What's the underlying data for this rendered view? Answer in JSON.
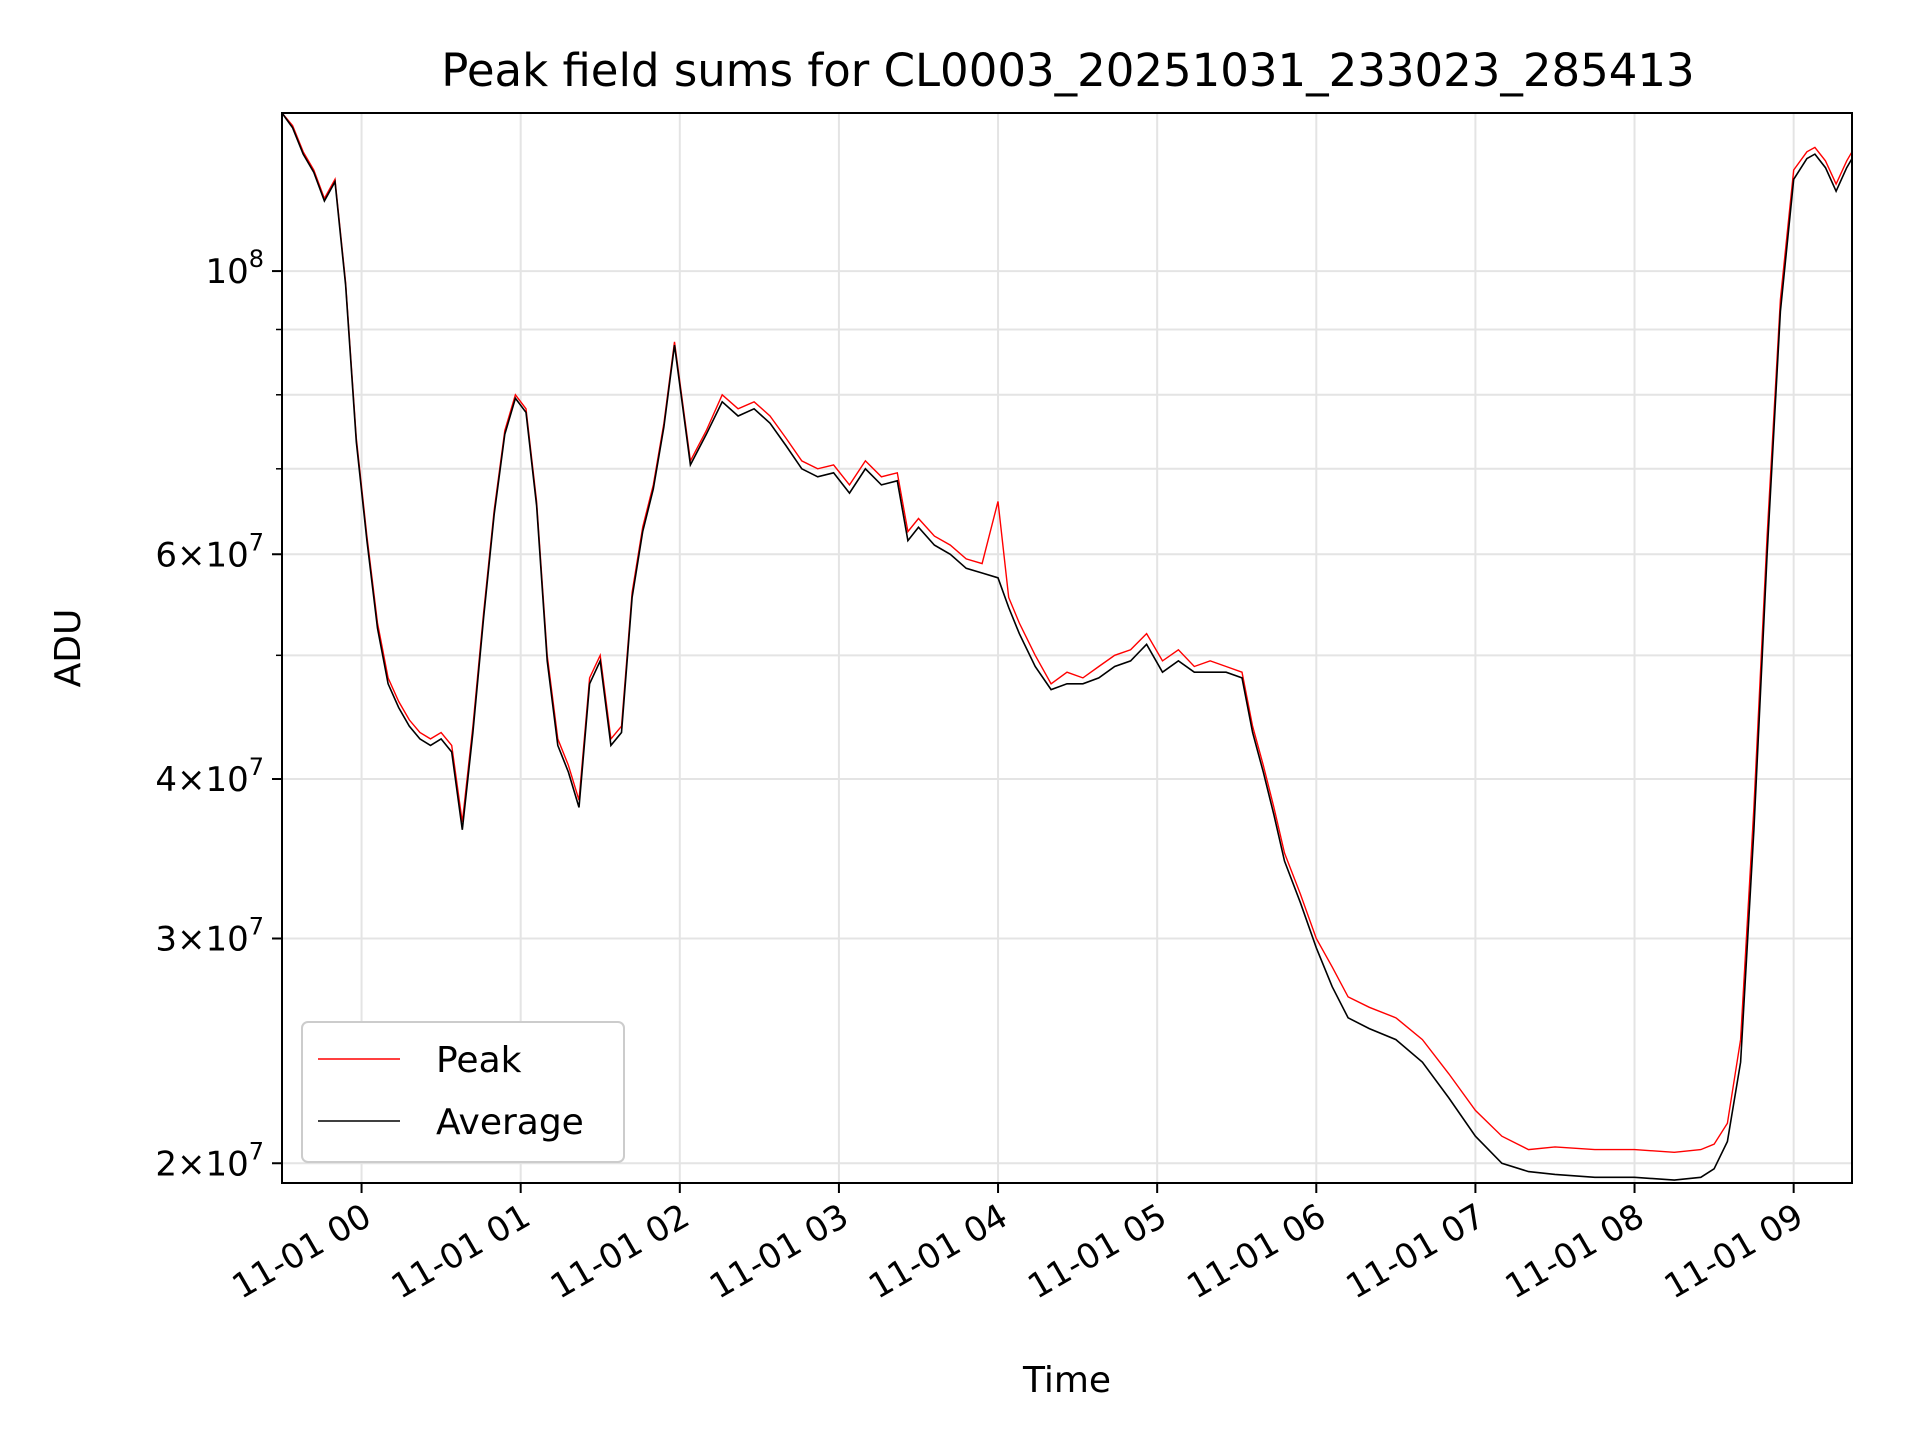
{
  "chart_data": {
    "type": "line",
    "title": "Peak field sums for CL0003_20251031_233023_285413",
    "xlabel": "Time",
    "ylabel": "ADU",
    "x_axis": {
      "kind": "time",
      "range": [
        "10-31 23:30",
        "11-01 09:22"
      ]
    },
    "y_axis": {
      "scale": "log",
      "range": [
        19300000,
        133000000
      ]
    },
    "grid": true,
    "legend_position": "lower-left",
    "x_ticks": [
      {
        "label": "11-01 00",
        "time": "11-01 00:00"
      },
      {
        "label": "11-01 01",
        "time": "11-01 01:00"
      },
      {
        "label": "11-01 02",
        "time": "11-01 02:00"
      },
      {
        "label": "11-01 03",
        "time": "11-01 03:00"
      },
      {
        "label": "11-01 04",
        "time": "11-01 04:00"
      },
      {
        "label": "11-01 05",
        "time": "11-01 05:00"
      },
      {
        "label": "11-01 06",
        "time": "11-01 06:00"
      },
      {
        "label": "11-01 07",
        "time": "11-01 07:00"
      },
      {
        "label": "11-01 08",
        "time": "11-01 08:00"
      },
      {
        "label": "11-01 09",
        "time": "11-01 09:00"
      }
    ],
    "y_ticks": [
      {
        "value": 20000000,
        "mantissa": "2",
        "base": "10",
        "exp": "7"
      },
      {
        "value": 30000000,
        "mantissa": "3",
        "base": "10",
        "exp": "7"
      },
      {
        "value": 40000000,
        "mantissa": "4",
        "base": "10",
        "exp": "7"
      },
      {
        "value": 60000000,
        "mantissa": "6",
        "base": "10",
        "exp": "7"
      },
      {
        "value": 100000000,
        "mantissa": "",
        "base": "10",
        "exp": "8"
      }
    ],
    "y_minor_ticks": [
      50000000,
      70000000,
      80000000,
      90000000
    ],
    "series": [
      {
        "name": "Peak",
        "color": "#ff0000",
        "x": [
          "10-31 23:30",
          "10-31 23:34",
          "10-31 23:38",
          "10-31 23:42",
          "10-31 23:46",
          "10-31 23:50",
          "10-31 23:54",
          "10-31 23:58",
          "11-01 00:02",
          "11-01 00:06",
          "11-01 00:10",
          "11-01 00:14",
          "11-01 00:18",
          "11-01 00:22",
          "11-01 00:26",
          "11-01 00:30",
          "11-01 00:34",
          "11-01 00:38",
          "11-01 00:42",
          "11-01 00:46",
          "11-01 00:50",
          "11-01 00:54",
          "11-01 00:58",
          "11-01 01:02",
          "11-01 01:06",
          "11-01 01:10",
          "11-01 01:14",
          "11-01 01:18",
          "11-01 01:22",
          "11-01 01:26",
          "11-01 01:30",
          "11-01 01:34",
          "11-01 01:38",
          "11-01 01:42",
          "11-01 01:46",
          "11-01 01:50",
          "11-01 01:54",
          "11-01 01:58",
          "11-01 02:04",
          "11-01 02:10",
          "11-01 02:16",
          "11-01 02:22",
          "11-01 02:28",
          "11-01 02:34",
          "11-01 02:40",
          "11-01 02:46",
          "11-01 02:52",
          "11-01 02:58",
          "11-01 03:04",
          "11-01 03:10",
          "11-01 03:16",
          "11-01 03:22",
          "11-01 03:26",
          "11-01 03:30",
          "11-01 03:36",
          "11-01 03:42",
          "11-01 03:48",
          "11-01 03:54",
          "11-01 04:00",
          "11-01 04:04",
          "11-01 04:08",
          "11-01 04:14",
          "11-01 04:20",
          "11-01 04:26",
          "11-01 04:32",
          "11-01 04:38",
          "11-01 04:44",
          "11-01 04:50",
          "11-01 04:56",
          "11-01 05:02",
          "11-01 05:08",
          "11-01 05:14",
          "11-01 05:20",
          "11-01 05:26",
          "11-01 05:32",
          "11-01 05:36",
          "11-01 05:40",
          "11-01 05:44",
          "11-01 05:48",
          "11-01 05:54",
          "11-01 06:00",
          "11-01 06:06",
          "11-01 06:12",
          "11-01 06:20",
          "11-01 06:30",
          "11-01 06:40",
          "11-01 06:50",
          "11-01 07:00",
          "11-01 07:10",
          "11-01 07:20",
          "11-01 07:30",
          "11-01 07:45",
          "11-01 08:00",
          "11-01 08:15",
          "11-01 08:25",
          "11-01 08:30",
          "11-01 08:35",
          "11-01 08:40",
          "11-01 08:45",
          "11-01 08:50",
          "11-01 08:55",
          "11-01 09:00",
          "11-01 09:05",
          "11-01 09:08",
          "11-01 09:12",
          "11-01 09:16",
          "11-01 09:20",
          "11-01 09:22"
        ],
        "values": [
          133000000,
          130000000,
          124000000,
          120000000,
          114000000,
          118000000,
          98000000,
          74000000,
          62000000,
          53000000,
          48000000,
          46000000,
          44500000,
          43500000,
          43000000,
          43500000,
          42500000,
          37000000,
          44000000,
          54000000,
          65000000,
          75000000,
          80000000,
          78000000,
          66000000,
          50000000,
          43000000,
          41000000,
          38500000,
          48000000,
          50000000,
          43000000,
          44000000,
          56000000,
          63000000,
          68000000,
          76000000,
          88000000,
          71000000,
          75000000,
          80000000,
          78000000,
          79000000,
          77000000,
          74000000,
          71000000,
          70000000,
          70500000,
          68000000,
          71000000,
          69000000,
          69500000,
          62500000,
          64000000,
          62000000,
          61000000,
          59500000,
          59000000,
          66000000,
          55500000,
          53000000,
          50000000,
          47500000,
          48500000,
          48000000,
          49000000,
          50000000,
          50500000,
          52000000,
          49500000,
          50500000,
          49000000,
          49500000,
          49000000,
          48500000,
          44000000,
          41000000,
          38000000,
          35000000,
          32500000,
          30000000,
          28500000,
          27000000,
          26500000,
          26000000,
          25000000,
          23500000,
          22000000,
          21000000,
          20500000,
          20600000,
          20500000,
          20500000,
          20400000,
          20500000,
          20700000,
          21500000,
          25000000,
          38000000,
          62000000,
          95000000,
          120000000,
          124000000,
          125000000,
          122000000,
          117000000,
          122000000,
          124000000
        ]
      },
      {
        "name": "Average",
        "color": "#000000",
        "x": [
          "10-31 23:30",
          "10-31 23:34",
          "10-31 23:38",
          "10-31 23:42",
          "10-31 23:46",
          "10-31 23:50",
          "10-31 23:54",
          "10-31 23:58",
          "11-01 00:02",
          "11-01 00:06",
          "11-01 00:10",
          "11-01 00:14",
          "11-01 00:18",
          "11-01 00:22",
          "11-01 00:26",
          "11-01 00:30",
          "11-01 00:34",
          "11-01 00:38",
          "11-01 00:42",
          "11-01 00:46",
          "11-01 00:50",
          "11-01 00:54",
          "11-01 00:58",
          "11-01 01:02",
          "11-01 01:06",
          "11-01 01:10",
          "11-01 01:14",
          "11-01 01:18",
          "11-01 01:22",
          "11-01 01:26",
          "11-01 01:30",
          "11-01 01:34",
          "11-01 01:38",
          "11-01 01:42",
          "11-01 01:46",
          "11-01 01:50",
          "11-01 01:54",
          "11-01 01:58",
          "11-01 02:04",
          "11-01 02:10",
          "11-01 02:16",
          "11-01 02:22",
          "11-01 02:28",
          "11-01 02:34",
          "11-01 02:40",
          "11-01 02:46",
          "11-01 02:52",
          "11-01 02:58",
          "11-01 03:04",
          "11-01 03:10",
          "11-01 03:16",
          "11-01 03:22",
          "11-01 03:26",
          "11-01 03:30",
          "11-01 03:36",
          "11-01 03:42",
          "11-01 03:48",
          "11-01 03:54",
          "11-01 04:00",
          "11-01 04:04",
          "11-01 04:08",
          "11-01 04:14",
          "11-01 04:20",
          "11-01 04:26",
          "11-01 04:32",
          "11-01 04:38",
          "11-01 04:44",
          "11-01 04:50",
          "11-01 04:56",
          "11-01 05:02",
          "11-01 05:08",
          "11-01 05:14",
          "11-01 05:20",
          "11-01 05:26",
          "11-01 05:32",
          "11-01 05:36",
          "11-01 05:40",
          "11-01 05:44",
          "11-01 05:48",
          "11-01 05:54",
          "11-01 06:00",
          "11-01 06:06",
          "11-01 06:12",
          "11-01 06:20",
          "11-01 06:30",
          "11-01 06:40",
          "11-01 06:50",
          "11-01 07:00",
          "11-01 07:10",
          "11-01 07:20",
          "11-01 07:30",
          "11-01 07:45",
          "11-01 08:00",
          "11-01 08:15",
          "11-01 08:25",
          "11-01 08:30",
          "11-01 08:35",
          "11-01 08:40",
          "11-01 08:45",
          "11-01 08:50",
          "11-01 08:55",
          "11-01 09:00",
          "11-01 09:05",
          "11-01 09:08",
          "11-01 09:12",
          "11-01 09:16",
          "11-01 09:20",
          "11-01 09:22"
        ],
        "values": [
          133000000,
          129500000,
          123500000,
          119500000,
          113500000,
          117500000,
          97500000,
          73500000,
          61500000,
          52500000,
          47500000,
          45500000,
          44000000,
          43000000,
          42500000,
          43000000,
          42000000,
          36500000,
          43500000,
          53500000,
          64500000,
          74500000,
          79500000,
          77500000,
          65500000,
          49500000,
          42500000,
          40500000,
          38000000,
          47500000,
          49500000,
          42500000,
          43500000,
          55500000,
          62500000,
          67500000,
          75500000,
          87500000,
          70500000,
          74500000,
          79000000,
          77000000,
          78000000,
          76000000,
          73000000,
          70000000,
          69000000,
          69500000,
          67000000,
          70000000,
          68000000,
          68500000,
          61500000,
          63000000,
          61000000,
          60000000,
          58500000,
          58000000,
          57500000,
          54500000,
          52000000,
          49000000,
          47000000,
          47500000,
          47500000,
          48000000,
          49000000,
          49500000,
          51000000,
          48500000,
          49500000,
          48500000,
          48500000,
          48500000,
          48000000,
          43500000,
          40500000,
          37500000,
          34500000,
          32000000,
          29500000,
          27500000,
          26000000,
          25500000,
          25000000,
          24000000,
          22500000,
          21000000,
          20000000,
          19700000,
          19600000,
          19500000,
          19500000,
          19400000,
          19500000,
          19800000,
          20800000,
          24000000,
          36500000,
          60000000,
          93000000,
          118000000,
          122500000,
          123500000,
          120500000,
          115500000,
          120500000,
          122500000
        ]
      }
    ]
  },
  "legend": [
    {
      "label": "Peak",
      "color": "#ff0000"
    },
    {
      "label": "Average",
      "color": "#000000"
    }
  ]
}
